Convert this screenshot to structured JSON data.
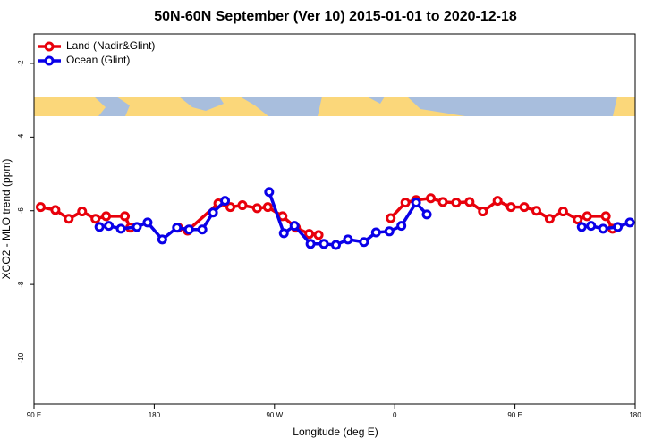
{
  "chart_data": {
    "type": "line",
    "title": "50N-60N September (Ver 10)   2015-01-01 to 2020-12-18",
    "x_label": "Longitude (deg E)",
    "y_label": "XCO2 - MLO trend (ppm)",
    "xlim": [
      90,
      540
    ],
    "xticks": [
      {
        "value": 90,
        "label": "90 E"
      },
      180,
      {
        "value": 270,
        "label": "90 W"
      },
      {
        "value": 360,
        "label": "0"
      },
      {
        "value": 450,
        "label": "90 E"
      },
      {
        "value": 540,
        "label": "180"
      }
    ],
    "ylim": [
      -11.25,
      -1.2
    ],
    "yticks": [
      -2,
      -4,
      -6,
      -8,
      -10
    ],
    "legend": "top-left",
    "series": [
      {
        "name": "Land (Nadir&Glint)",
        "color": "#e8000b",
        "x": [
          95,
          106,
          116,
          126,
          136,
          144,
          158,
          162,
          null,
          198,
          205,
          228,
          237,
          246,
          257,
          265,
          276,
          286,
          296,
          303,
          null,
          357,
          368,
          376,
          387,
          396,
          406,
          416,
          426,
          437,
          447,
          457,
          466,
          476,
          486,
          497,
          504,
          518,
          523
        ],
        "values": [
          -5.9,
          -5.98,
          -6.22,
          -6.02,
          -6.22,
          -6.15,
          -6.15,
          -6.46,
          null,
          -6.46,
          -6.54,
          -5.8,
          -5.9,
          -5.85,
          -5.93,
          -5.9,
          -6.15,
          -6.46,
          -6.63,
          -6.66,
          null,
          -6.2,
          -5.78,
          -5.71,
          -5.66,
          -5.76,
          -5.78,
          -5.76,
          -6.02,
          -5.73,
          -5.9,
          -5.9,
          -6.0,
          -6.22,
          -6.02,
          -6.24,
          -6.15,
          -6.15,
          -6.49
        ]
      },
      {
        "name": "Ocean (Glint)",
        "color": "#0a00e8",
        "x": [
          139,
          146,
          155,
          167,
          175,
          186,
          197,
          206,
          216,
          224,
          233,
          null,
          266,
          277,
          285,
          297,
          307,
          316,
          325,
          337,
          346,
          356,
          365,
          376,
          384,
          null,
          500,
          507,
          516,
          527,
          536
        ],
        "values": [
          -6.44,
          -6.41,
          -6.49,
          -6.44,
          -6.32,
          -6.78,
          -6.46,
          -6.51,
          -6.51,
          -6.05,
          -5.73,
          null,
          -5.49,
          -6.61,
          -6.41,
          -6.9,
          -6.9,
          -6.93,
          -6.78,
          -6.85,
          -6.59,
          -6.56,
          -6.41,
          -5.78,
          -6.1,
          null,
          -6.44,
          -6.41,
          -6.49,
          -6.44,
          -6.32
        ]
      }
    ]
  }
}
